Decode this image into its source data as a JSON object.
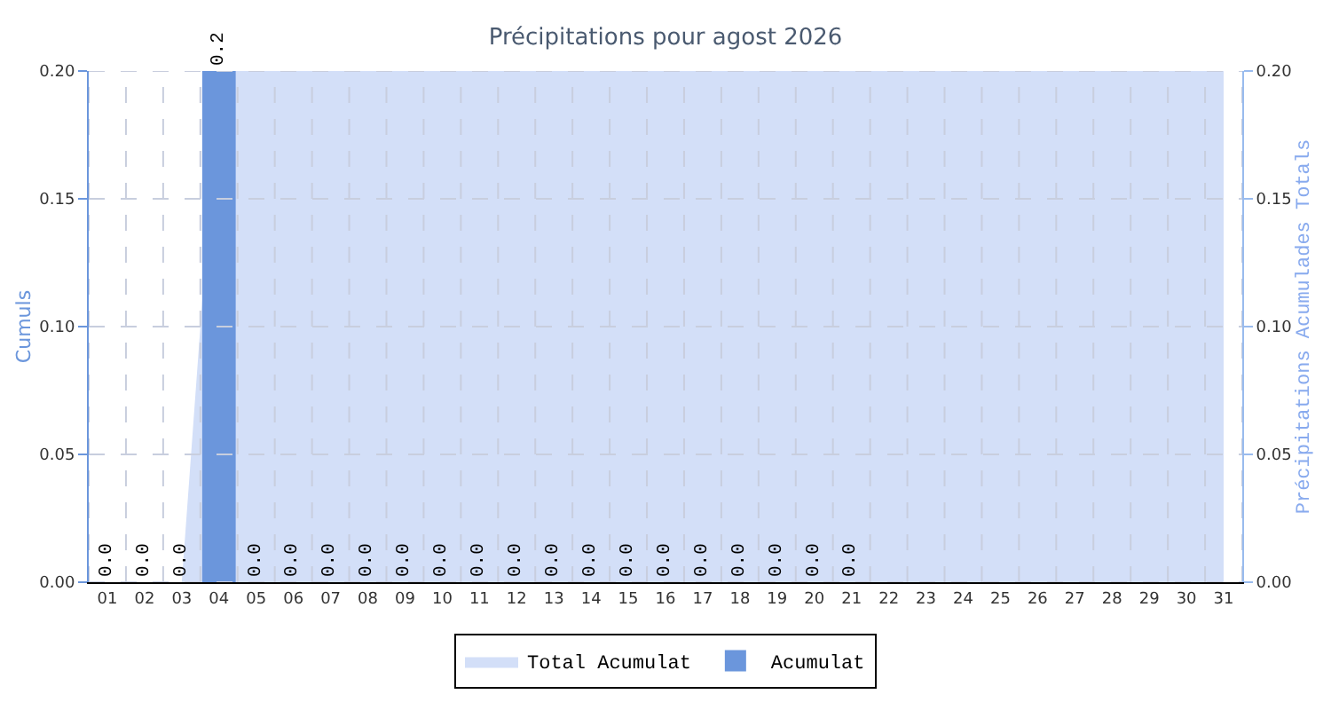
{
  "chart_data": {
    "type": "bar",
    "title": "Précipitations pour agost 2026",
    "ylabel": "Cumuls",
    "y2label": "Précipitations Acumulades Totals",
    "categories": [
      "01",
      "02",
      "03",
      "04",
      "05",
      "06",
      "07",
      "08",
      "09",
      "10",
      "11",
      "12",
      "13",
      "14",
      "15",
      "16",
      "17",
      "18",
      "19",
      "20",
      "21",
      "22",
      "23",
      "24",
      "25",
      "26",
      "27",
      "28",
      "29",
      "30",
      "31"
    ],
    "series": [
      {
        "name": "Total Acumulat",
        "type": "area",
        "axis": "y2",
        "color": "#d3dff8",
        "values": [
          0,
          0,
          0,
          0.2,
          0.2,
          0.2,
          0.2,
          0.2,
          0.2,
          0.2,
          0.2,
          0.2,
          0.2,
          0.2,
          0.2,
          0.2,
          0.2,
          0.2,
          0.2,
          0.2,
          0.2,
          0.2,
          0.2,
          0.2,
          0.2,
          0.2,
          0.2,
          0.2,
          0.2,
          0.2,
          0.2
        ]
      },
      {
        "name": "Acumulat",
        "color": "#6b96dc",
        "values": [
          0,
          0,
          0,
          0.2,
          0,
          0,
          0,
          0,
          0,
          0,
          0,
          0,
          0,
          0,
          0,
          0,
          0,
          0,
          0,
          0,
          0,
          null,
          null,
          null,
          null,
          null,
          null,
          null,
          null,
          null,
          null
        ],
        "value_labels": [
          "0.0",
          "0.0",
          "0.0",
          "0.2",
          "0.0",
          "0.0",
          "0.0",
          "0.0",
          "0.0",
          "0.0",
          "0.0",
          "0.0",
          "0.0",
          "0.0",
          "0.0",
          "0.0",
          "0.0",
          "0.0",
          "0.0",
          "0.0",
          "0.0",
          null,
          null,
          null,
          null,
          null,
          null,
          null,
          null,
          null,
          null
        ]
      }
    ],
    "ylim": [
      0,
      0.2
    ],
    "yticks": [
      {
        "value": 0,
        "label": "0.00"
      },
      {
        "value": 0.05,
        "label": "0.05"
      },
      {
        "value": 0.1,
        "label": "0.10"
      },
      {
        "value": 0.15,
        "label": "0.15"
      },
      {
        "value": 0.2,
        "label": "0.20"
      }
    ],
    "y2lim": [
      0,
      0.2
    ],
    "y2ticks": [
      {
        "value": 0,
        "label": "0.00"
      },
      {
        "value": 0.05,
        "label": "0.05"
      },
      {
        "value": 0.1,
        "label": "0.10"
      },
      {
        "value": 0.15,
        "label": "0.15"
      },
      {
        "value": 0.2,
        "label": "0.20"
      }
    ],
    "grid": true,
    "legend": "bottom"
  }
}
